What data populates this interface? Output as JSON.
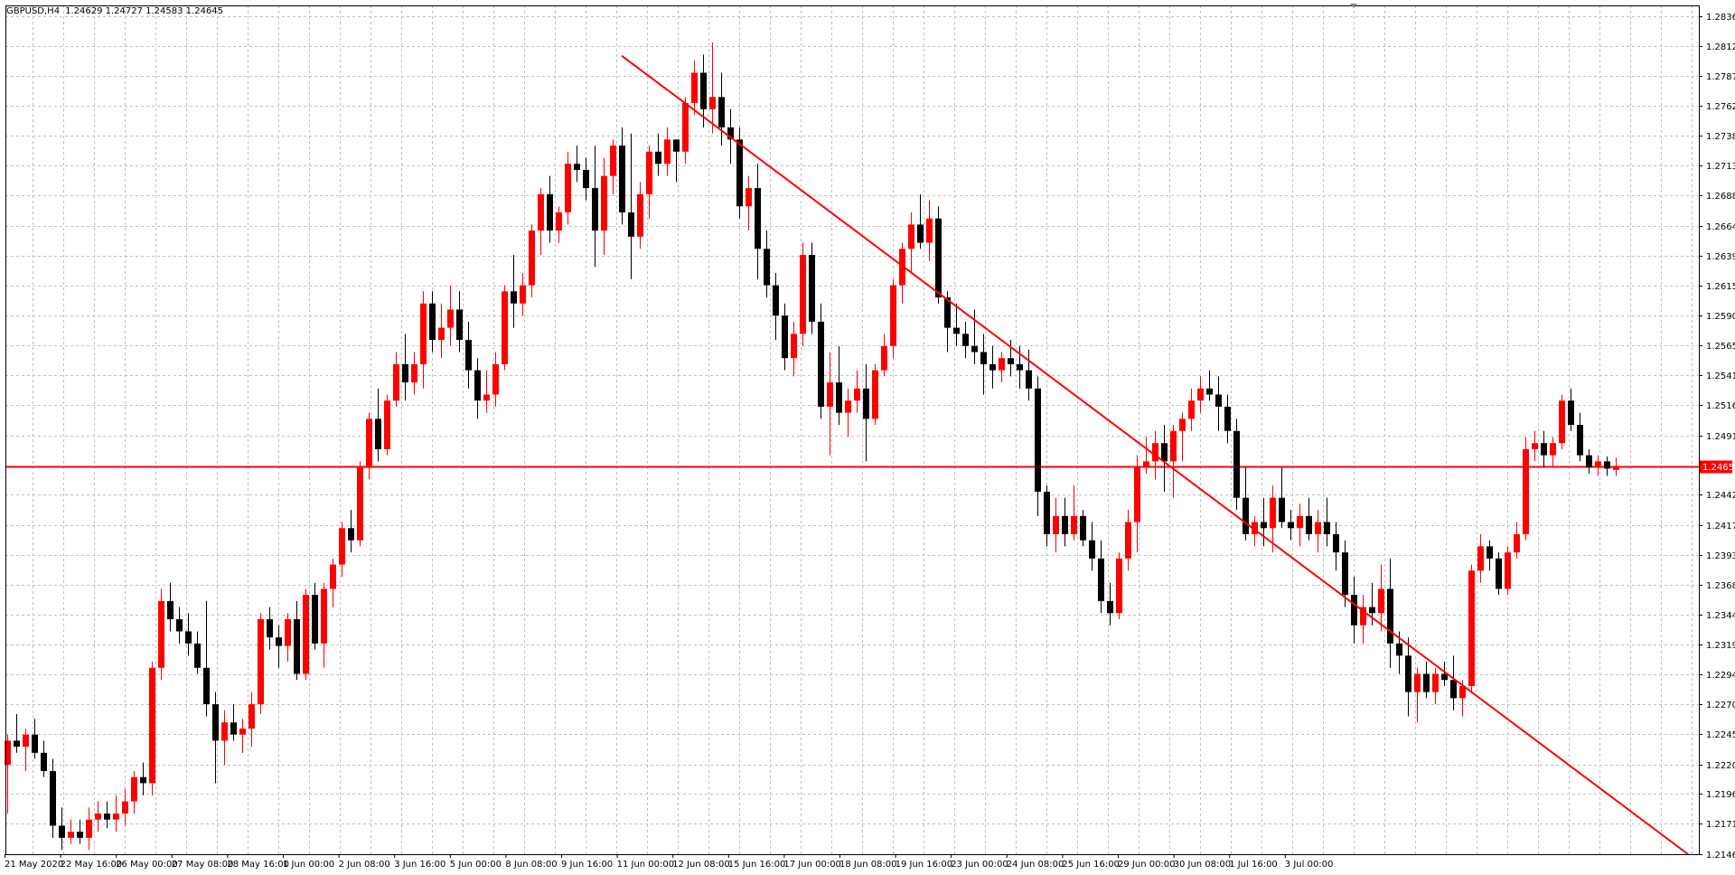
{
  "header": {
    "symbol": "GBPUSD,H4",
    "ohlc": "1.24629 1.24727 1.24583 1.24645"
  },
  "colors": {
    "bull": "#ff0000",
    "bear": "#000000",
    "grid": "#c0c0c0",
    "axis": "#000000",
    "trendline": "#ff0000",
    "price_line": "#ff0000",
    "badge_bg": "#ff0000"
  },
  "chart_data": {
    "type": "candlestick",
    "title": "GBPUSD,H4",
    "grid": true,
    "ylim": [
      1.21465,
      1.28365
    ],
    "y_ticks": [
      "1.28365",
      "1.28120",
      "1.27875",
      "1.27625",
      "1.27380",
      "1.27135",
      "1.26888",
      "1.26640",
      "1.26395",
      "1.26150",
      "1.25900",
      "1.25655",
      "1.25410",
      "1.25165",
      "1.24915",
      "1.24425",
      "1.24175",
      "1.23930",
      "1.23685",
      "1.23440",
      "1.23190",
      "1.22945",
      "1.22700",
      "1.22455",
      "1.22205",
      "1.21960",
      "1.21715",
      "1.21465"
    ],
    "x_labels": [
      "21 May 2020",
      "22 May 16:00",
      "26 May 00:00",
      "27 May 08:00",
      "28 May 16:00",
      "1 Jun 00:00",
      "2 Jun 08:00",
      "3 Jun 16:00",
      "5 Jun 00:00",
      "8 Jun 08:00",
      "9 Jun 16:00",
      "11 Jun 00:00",
      "12 Jun 08:00",
      "15 Jun 16:00",
      "17 Jun 00:00",
      "18 Jun 08:00",
      "19 Jun 16:00",
      "23 Jun 00:00",
      "24 Jun 08:00",
      "25 Jun 16:00",
      "29 Jun 00:00",
      "30 Jun 08:00",
      "1 Jul 16:00",
      "3 Jul 00:00"
    ],
    "current_price": 1.24657,
    "current_price_label": "1.24657",
    "trendline": {
      "start_index": 68,
      "start_price": 1.2804,
      "end_index": 186,
      "end_price": 1.21465
    },
    "candles": [
      [
        1.222,
        1.2245,
        1.218,
        1.224
      ],
      [
        1.224,
        1.2262,
        1.223,
        1.2235
      ],
      [
        1.2235,
        1.225,
        1.2215,
        1.2245
      ],
      [
        1.2245,
        1.2258,
        1.2225,
        1.223
      ],
      [
        1.223,
        1.224,
        1.221,
        1.2215
      ],
      [
        1.2215,
        1.2225,
        1.216,
        1.217
      ],
      [
        1.217,
        1.2185,
        1.215,
        1.216
      ],
      [
        1.216,
        1.2175,
        1.2155,
        1.2165
      ],
      [
        1.2165,
        1.2175,
        1.2155,
        1.216
      ],
      [
        1.216,
        1.2185,
        1.215,
        1.2175
      ],
      [
        1.2175,
        1.219,
        1.2165,
        1.218
      ],
      [
        1.218,
        1.219,
        1.2168,
        1.2175
      ],
      [
        1.2175,
        1.2195,
        1.2165,
        1.218
      ],
      [
        1.218,
        1.22,
        1.217,
        1.219
      ],
      [
        1.219,
        1.2215,
        1.218,
        1.221
      ],
      [
        1.221,
        1.2222,
        1.2195,
        1.2205
      ],
      [
        1.2205,
        1.2305,
        1.2195,
        1.23
      ],
      [
        1.23,
        1.2365,
        1.229,
        1.2355
      ],
      [
        1.2355,
        1.237,
        1.233,
        1.234
      ],
      [
        1.234,
        1.235,
        1.232,
        1.233
      ],
      [
        1.233,
        1.2345,
        1.231,
        1.232
      ],
      [
        1.232,
        1.233,
        1.2295,
        1.23
      ],
      [
        1.23,
        1.2355,
        1.226,
        1.227
      ],
      [
        1.227,
        1.228,
        1.2205,
        1.224
      ],
      [
        1.224,
        1.2265,
        1.222,
        1.2255
      ],
      [
        1.2255,
        1.227,
        1.224,
        1.2245
      ],
      [
        1.2245,
        1.2258,
        1.223,
        1.225
      ],
      [
        1.225,
        1.228,
        1.2235,
        1.227
      ],
      [
        1.227,
        1.2345,
        1.2262,
        1.234
      ],
      [
        1.234,
        1.235,
        1.2315,
        1.2325
      ],
      [
        1.2325,
        1.2335,
        1.23,
        1.2318
      ],
      [
        1.2318,
        1.2345,
        1.2305,
        1.234
      ],
      [
        1.234,
        1.2355,
        1.229,
        1.2295
      ],
      [
        1.2295,
        1.2365,
        1.229,
        1.236
      ],
      [
        1.236,
        1.237,
        1.2315,
        1.232
      ],
      [
        1.232,
        1.237,
        1.23,
        1.2365
      ],
      [
        1.2365,
        1.239,
        1.235,
        1.2385
      ],
      [
        1.2385,
        1.242,
        1.2375,
        1.2415
      ],
      [
        1.2415,
        1.243,
        1.2395,
        1.2405
      ],
      [
        1.2405,
        1.247,
        1.24,
        1.2465
      ],
      [
        1.2465,
        1.251,
        1.2455,
        1.2505
      ],
      [
        1.2505,
        1.253,
        1.247,
        1.248
      ],
      [
        1.248,
        1.2525,
        1.2475,
        1.252
      ],
      [
        1.252,
        1.256,
        1.2515,
        1.255
      ],
      [
        1.255,
        1.2575,
        1.252,
        1.2535
      ],
      [
        1.2535,
        1.256,
        1.2525,
        1.255
      ],
      [
        1.255,
        1.261,
        1.253,
        1.26
      ],
      [
        1.26,
        1.261,
        1.256,
        1.257
      ],
      [
        1.257,
        1.26,
        1.2555,
        1.258
      ],
      [
        1.258,
        1.2615,
        1.2565,
        1.2595
      ],
      [
        1.2595,
        1.261,
        1.256,
        1.257
      ],
      [
        1.257,
        1.2585,
        1.253,
        1.2545
      ],
      [
        1.2545,
        1.2555,
        1.2505,
        1.252
      ],
      [
        1.252,
        1.2545,
        1.251,
        1.2525
      ],
      [
        1.2525,
        1.256,
        1.2515,
        1.255
      ],
      [
        1.255,
        1.2615,
        1.2545,
        1.261
      ],
      [
        1.261,
        1.264,
        1.258,
        1.26
      ],
      [
        1.26,
        1.2625,
        1.259,
        1.2615
      ],
      [
        1.2615,
        1.2665,
        1.2605,
        1.266
      ],
      [
        1.266,
        1.2695,
        1.264,
        1.269
      ],
      [
        1.269,
        1.2705,
        1.265,
        1.266
      ],
      [
        1.266,
        1.268,
        1.265,
        1.2675
      ],
      [
        1.2675,
        1.2725,
        1.2665,
        1.2715
      ],
      [
        1.2715,
        1.273,
        1.27,
        1.271
      ],
      [
        1.271,
        1.272,
        1.2685,
        1.2695
      ],
      [
        1.2695,
        1.273,
        1.263,
        1.266
      ],
      [
        1.266,
        1.272,
        1.264,
        1.2705
      ],
      [
        1.2705,
        1.2735,
        1.269,
        1.273
      ],
      [
        1.273,
        1.2745,
        1.2665,
        1.2675
      ],
      [
        1.2675,
        1.274,
        1.262,
        1.2655
      ],
      [
        1.2655,
        1.27,
        1.2645,
        1.269
      ],
      [
        1.269,
        1.273,
        1.267,
        1.2725
      ],
      [
        1.2725,
        1.274,
        1.2705,
        1.2715
      ],
      [
        1.2715,
        1.2745,
        1.2705,
        1.2735
      ],
      [
        1.2735,
        1.2735,
        1.27,
        1.2725
      ],
      [
        1.2725,
        1.277,
        1.2715,
        1.2765
      ],
      [
        1.2765,
        1.28,
        1.2755,
        1.279
      ],
      [
        1.279,
        1.2805,
        1.2745,
        1.276
      ],
      [
        1.276,
        1.2815,
        1.274,
        1.277
      ],
      [
        1.277,
        1.279,
        1.273,
        1.2745
      ],
      [
        1.2745,
        1.276,
        1.2715,
        1.2735
      ],
      [
        1.2735,
        1.2745,
        1.267,
        1.268
      ],
      [
        1.268,
        1.2705,
        1.266,
        1.2695
      ],
      [
        1.2695,
        1.2715,
        1.262,
        1.2645
      ],
      [
        1.2645,
        1.266,
        1.2605,
        1.2615
      ],
      [
        1.2615,
        1.2625,
        1.257,
        1.259
      ],
      [
        1.259,
        1.26,
        1.2545,
        1.2555
      ],
      [
        1.2555,
        1.2585,
        1.254,
        1.2575
      ],
      [
        1.2575,
        1.265,
        1.2565,
        1.264
      ],
      [
        1.264,
        1.265,
        1.2575,
        1.2585
      ],
      [
        1.2585,
        1.26,
        1.2505,
        1.2515
      ],
      [
        1.2515,
        1.256,
        1.2475,
        1.2535
      ],
      [
        1.2535,
        1.2565,
        1.25,
        1.251
      ],
      [
        1.251,
        1.253,
        1.249,
        1.252
      ],
      [
        1.252,
        1.2545,
        1.251,
        1.253
      ],
      [
        1.253,
        1.255,
        1.247,
        1.2505
      ],
      [
        1.2505,
        1.255,
        1.25,
        1.2545
      ],
      [
        1.2545,
        1.2575,
        1.254,
        1.2565
      ],
      [
        1.2565,
        1.262,
        1.2555,
        1.2615
      ],
      [
        1.2615,
        1.265,
        1.26,
        1.2645
      ],
      [
        1.2645,
        1.2675,
        1.2625,
        1.2665
      ],
      [
        1.2665,
        1.269,
        1.2645,
        1.265
      ],
      [
        1.265,
        1.2685,
        1.2635,
        1.267
      ],
      [
        1.267,
        1.268,
        1.26,
        1.2605
      ],
      [
        1.2605,
        1.261,
        1.256,
        1.258
      ],
      [
        1.258,
        1.26,
        1.2565,
        1.2575
      ],
      [
        1.2575,
        1.2585,
        1.2555,
        1.2565
      ],
      [
        1.2565,
        1.2595,
        1.255,
        1.256
      ],
      [
        1.256,
        1.2575,
        1.2525,
        1.255
      ],
      [
        1.255,
        1.2565,
        1.253,
        1.2545
      ],
      [
        1.2545,
        1.256,
        1.2535,
        1.2555
      ],
      [
        1.2555,
        1.257,
        1.254,
        1.255
      ],
      [
        1.255,
        1.2565,
        1.253,
        1.2545
      ],
      [
        1.2545,
        1.2562,
        1.252,
        1.253
      ],
      [
        1.253,
        1.254,
        1.2425,
        1.2445
      ],
      [
        1.2445,
        1.245,
        1.24,
        1.241
      ],
      [
        1.241,
        1.244,
        1.2395,
        1.2425
      ],
      [
        1.2425,
        1.244,
        1.24,
        1.241
      ],
      [
        1.241,
        1.245,
        1.2405,
        1.2425
      ],
      [
        1.2425,
        1.243,
        1.24,
        1.2405
      ],
      [
        1.2405,
        1.242,
        1.238,
        1.239
      ],
      [
        1.239,
        1.2405,
        1.2345,
        1.2355
      ],
      [
        1.2355,
        1.237,
        1.2335,
        1.2345
      ],
      [
        1.2345,
        1.2395,
        1.234,
        1.239
      ],
      [
        1.239,
        1.243,
        1.238,
        1.242
      ],
      [
        1.242,
        1.2475,
        1.2395,
        1.2465
      ],
      [
        1.2465,
        1.249,
        1.246,
        1.247
      ],
      [
        1.247,
        1.2495,
        1.2455,
        1.2485
      ],
      [
        1.2485,
        1.25,
        1.2445,
        1.247
      ],
      [
        1.247,
        1.25,
        1.244,
        1.2495
      ],
      [
        1.2495,
        1.251,
        1.247,
        1.2505
      ],
      [
        1.2505,
        1.253,
        1.2495,
        1.252
      ],
      [
        1.252,
        1.254,
        1.251,
        1.253
      ],
      [
        1.253,
        1.2545,
        1.252,
        1.2525
      ],
      [
        1.2525,
        1.254,
        1.2495,
        1.2515
      ],
      [
        1.2515,
        1.2525,
        1.2485,
        1.2495
      ],
      [
        1.2495,
        1.2505,
        1.243,
        1.244
      ],
      [
        1.244,
        1.2465,
        1.2405,
        1.241
      ],
      [
        1.241,
        1.2425,
        1.24,
        1.242
      ],
      [
        1.242,
        1.244,
        1.24,
        1.2415
      ],
      [
        1.2415,
        1.245,
        1.2395,
        1.244
      ],
      [
        1.244,
        1.2465,
        1.2415,
        1.242
      ],
      [
        1.242,
        1.243,
        1.2405,
        1.2415
      ],
      [
        1.2415,
        1.2435,
        1.24,
        1.2425
      ],
      [
        1.2425,
        1.244,
        1.2405,
        1.241
      ],
      [
        1.241,
        1.243,
        1.2395,
        1.242
      ],
      [
        1.242,
        1.244,
        1.24,
        1.241
      ],
      [
        1.241,
        1.242,
        1.238,
        1.2395
      ],
      [
        1.2395,
        1.2405,
        1.235,
        1.236
      ],
      [
        1.236,
        1.2375,
        1.232,
        1.2335
      ],
      [
        1.2335,
        1.236,
        1.232,
        1.235
      ],
      [
        1.235,
        1.237,
        1.2335,
        1.2345
      ],
      [
        1.2345,
        1.2385,
        1.233,
        1.2365
      ],
      [
        1.2365,
        1.239,
        1.23,
        1.232
      ],
      [
        1.232,
        1.233,
        1.2295,
        1.231
      ],
      [
        1.231,
        1.2325,
        1.226,
        1.228
      ],
      [
        1.228,
        1.23,
        1.2255,
        1.2295
      ],
      [
        1.2295,
        1.2305,
        1.2275,
        1.228
      ],
      [
        1.228,
        1.23,
        1.227,
        1.2295
      ],
      [
        1.2295,
        1.2305,
        1.2285,
        1.229
      ],
      [
        1.229,
        1.231,
        1.2265,
        1.2275
      ],
      [
        1.2275,
        1.229,
        1.226,
        1.2285
      ],
      [
        1.2285,
        1.2385,
        1.228,
        1.238
      ],
      [
        1.238,
        1.241,
        1.237,
        1.24
      ],
      [
        1.24,
        1.2405,
        1.238,
        1.239
      ],
      [
        1.239,
        1.2395,
        1.236,
        1.2365
      ],
      [
        1.2365,
        1.24,
        1.236,
        1.2395
      ],
      [
        1.2395,
        1.242,
        1.239,
        1.241
      ],
      [
        1.241,
        1.249,
        1.2405,
        1.248
      ],
      [
        1.248,
        1.2495,
        1.247,
        1.2485
      ],
      [
        1.2485,
        1.2495,
        1.2465,
        1.2475
      ],
      [
        1.2475,
        1.249,
        1.2465,
        1.2485
      ],
      [
        1.2485,
        1.2525,
        1.248,
        1.252
      ],
      [
        1.252,
        1.253,
        1.2495,
        1.25
      ],
      [
        1.25,
        1.251,
        1.247,
        1.2475
      ],
      [
        1.2475,
        1.248,
        1.246,
        1.2465
      ],
      [
        1.2465,
        1.2475,
        1.2458,
        1.247
      ],
      [
        1.247,
        1.2474,
        1.2458,
        1.2464
      ],
      [
        1.2463,
        1.2473,
        1.2458,
        1.2465
      ]
    ]
  }
}
